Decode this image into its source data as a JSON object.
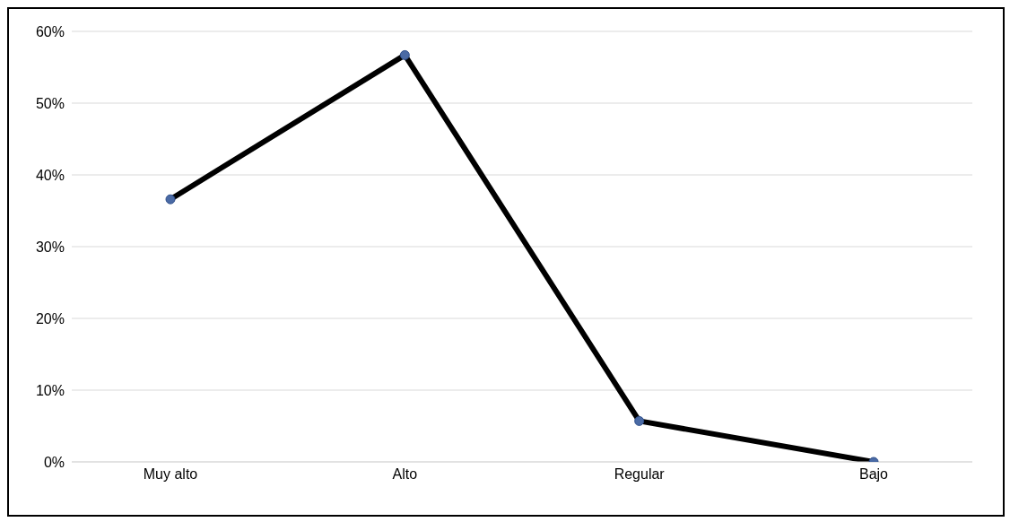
{
  "chart_data": {
    "type": "line",
    "categories": [
      "Muy alto",
      "Alto",
      "Regular",
      "Bajo"
    ],
    "series": [
      {
        "color": "#000000",
        "values": [
          36.6,
          56.7,
          5.7,
          0
        ]
      }
    ],
    "ylim": [
      0,
      60
    ],
    "yticks": [
      {
        "value": 0,
        "label": "0%"
      },
      {
        "value": 10,
        "label": "10%"
      },
      {
        "value": 20,
        "label": "20%"
      },
      {
        "value": 30,
        "label": "30%"
      },
      {
        "value": 40,
        "label": "40%"
      },
      {
        "value": 50,
        "label": "50%"
      },
      {
        "value": 60,
        "label": "60%"
      }
    ],
    "grid": "y",
    "legend": false,
    "marker": "circle",
    "line_style": "solid"
  }
}
